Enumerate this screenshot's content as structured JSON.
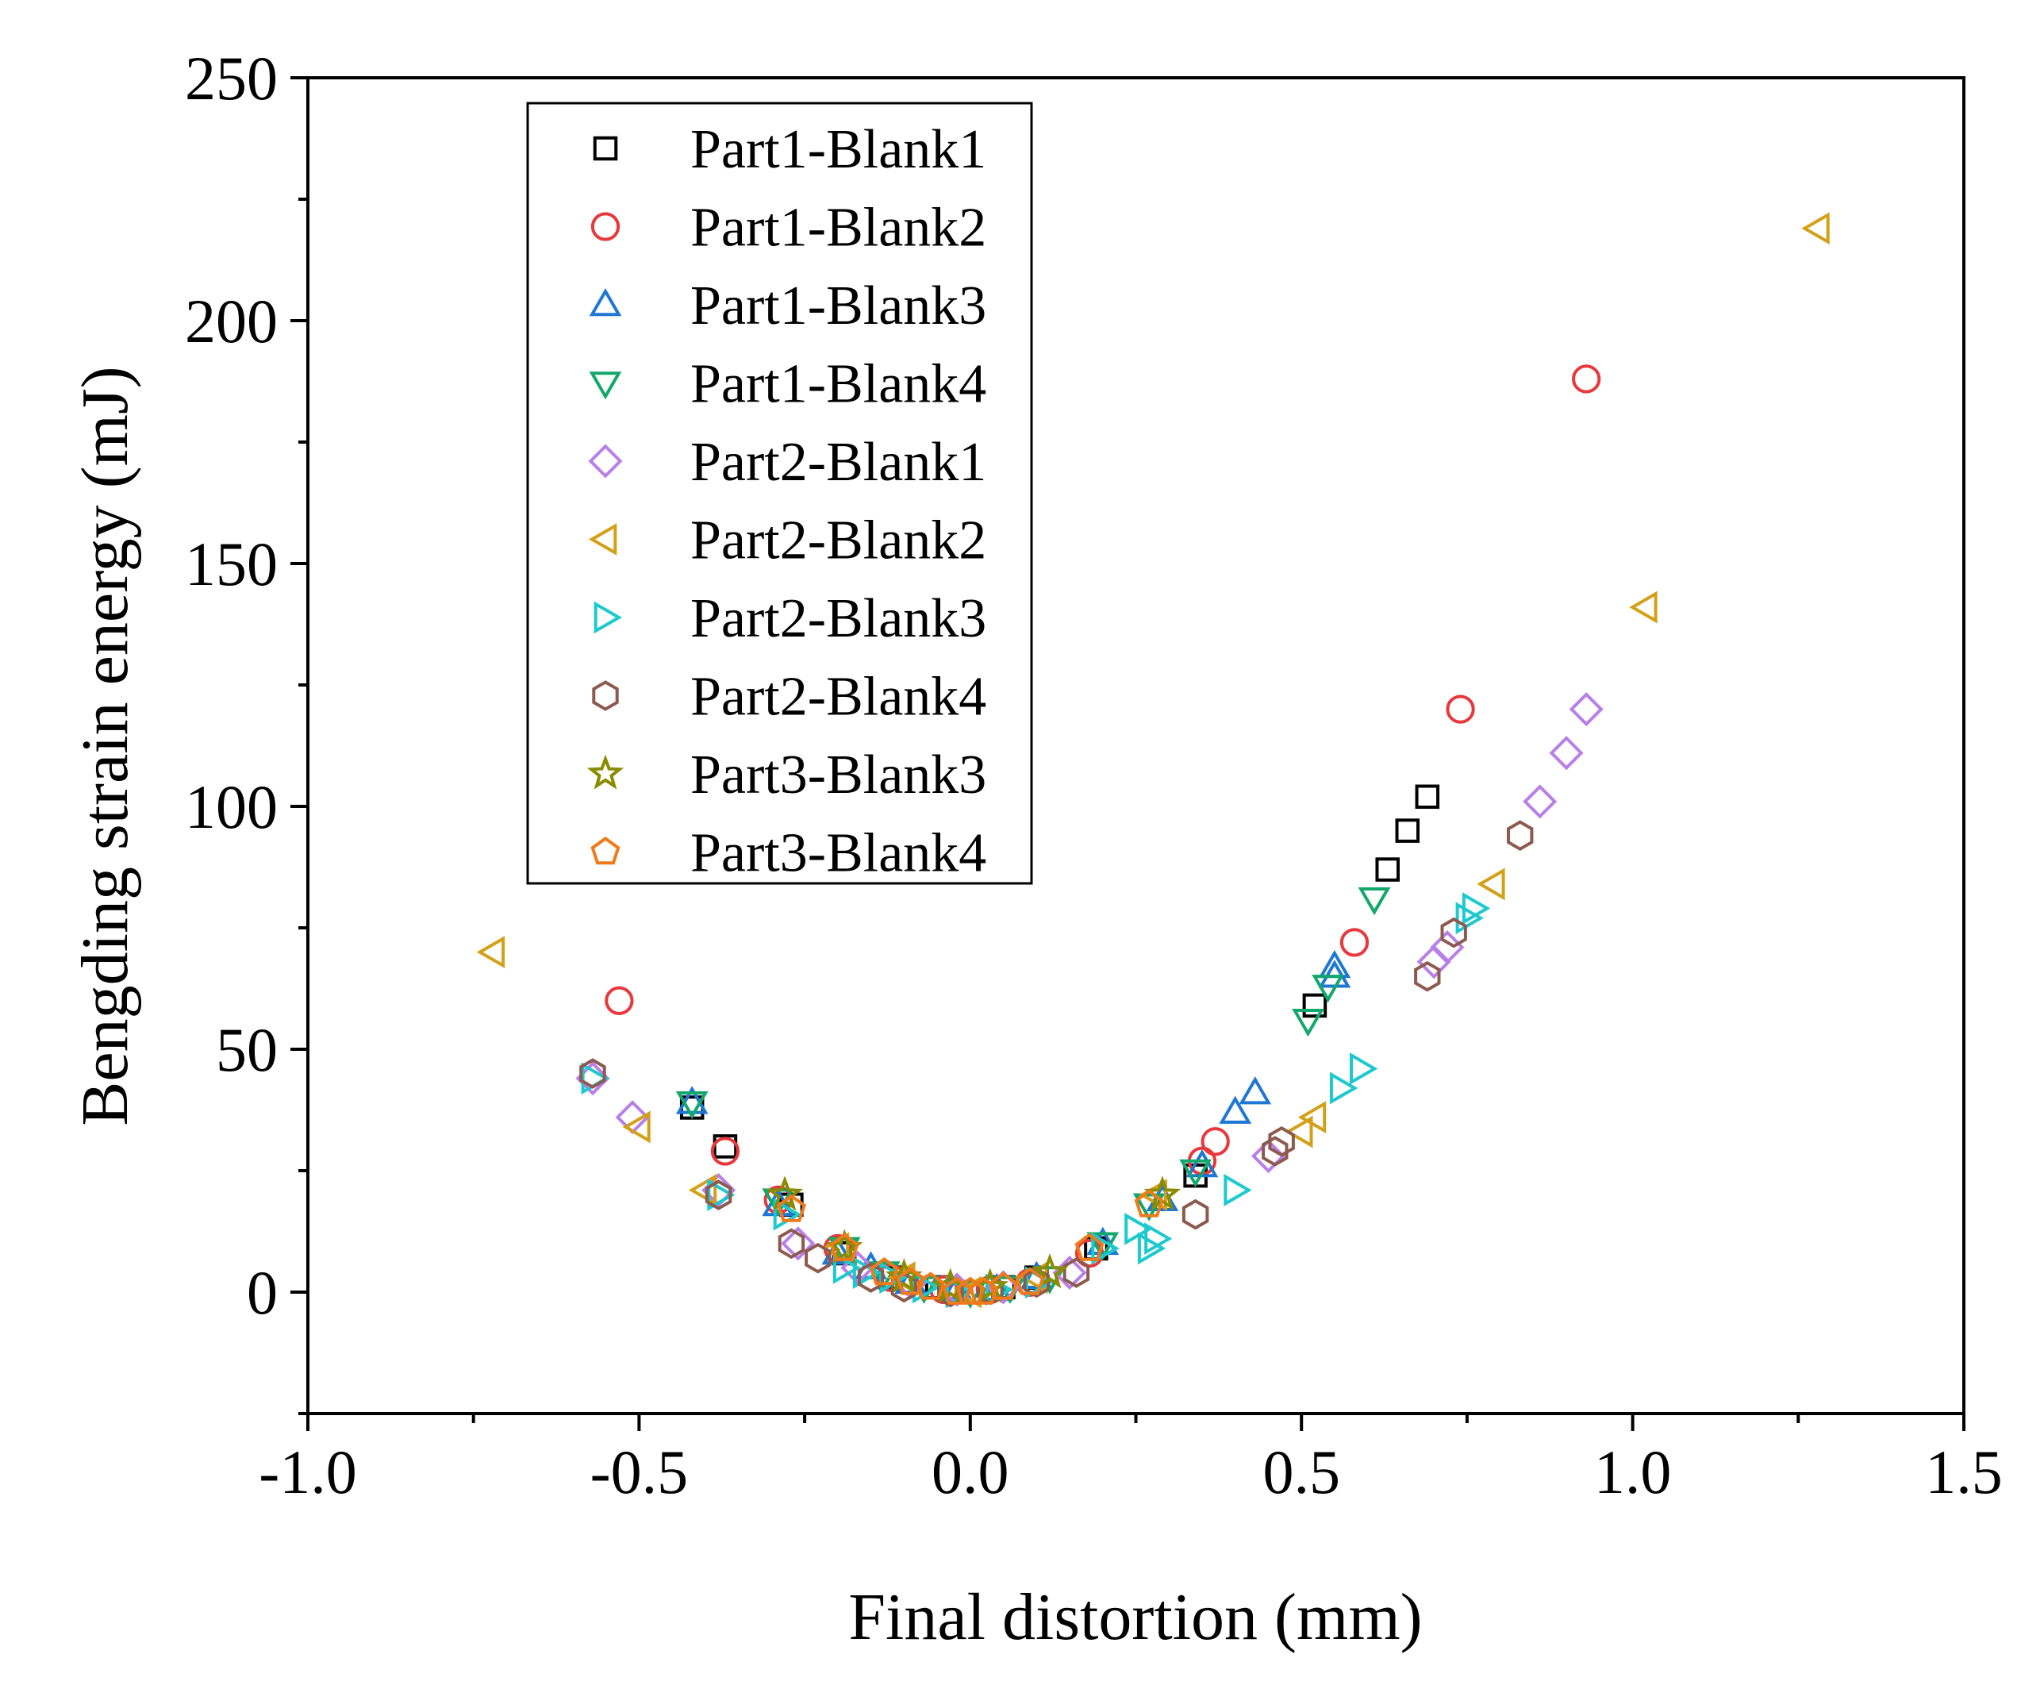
{
  "chart_data": {
    "type": "scatter",
    "title": "",
    "xlabel": "Final distortion (mm)",
    "ylabel": "Bengding strain energy (mJ)",
    "xlim": [
      -1.0,
      1.5
    ],
    "ylim": [
      -25,
      250
    ],
    "xticks": [
      -1.0,
      -0.5,
      0.0,
      0.5,
      1.0,
      1.5
    ],
    "xtick_labels": [
      "-1.0",
      "-0.5",
      "0.0",
      "0.5",
      "1.0",
      "1.5"
    ],
    "yticks": [
      0,
      50,
      100,
      150,
      200,
      250
    ],
    "ytick_labels": [
      "0",
      "50",
      "100",
      "150",
      "200",
      "250"
    ],
    "grid": false,
    "legend_position": "top-left",
    "series": [
      {
        "name": "Part1-Blank1",
        "marker": "square",
        "color": "#000000",
        "points": [
          [
            -0.42,
            38
          ],
          [
            -0.37,
            30
          ],
          [
            -0.27,
            18
          ],
          [
            -0.19,
            8
          ],
          [
            -0.12,
            3
          ],
          [
            -0.05,
            1
          ],
          [
            0.0,
            0
          ],
          [
            0.05,
            1
          ],
          [
            0.1,
            3
          ],
          [
            0.19,
            9
          ],
          [
            0.34,
            24
          ],
          [
            0.52,
            59
          ],
          [
            0.63,
            87
          ],
          [
            0.66,
            95
          ],
          [
            0.69,
            102
          ]
        ]
      },
      {
        "name": "Part1-Blank2",
        "marker": "circle",
        "color": "#e8383d",
        "points": [
          [
            -0.53,
            60
          ],
          [
            -0.37,
            29
          ],
          [
            -0.29,
            19
          ],
          [
            -0.2,
            9
          ],
          [
            -0.12,
            3
          ],
          [
            -0.04,
            0.5
          ],
          [
            0.03,
            0.5
          ],
          [
            0.09,
            2
          ],
          [
            0.18,
            8
          ],
          [
            0.35,
            27
          ],
          [
            0.37,
            31
          ],
          [
            0.58,
            72
          ],
          [
            0.74,
            120
          ],
          [
            0.93,
            188
          ]
        ]
      },
      {
        "name": "Part1-Blank3",
        "marker": "triangle-up",
        "color": "#1f77d4",
        "points": [
          [
            -0.42,
            39
          ],
          [
            -0.29,
            18
          ],
          [
            -0.2,
            8
          ],
          [
            -0.15,
            5
          ],
          [
            -0.09,
            2
          ],
          [
            -0.02,
            0.5
          ],
          [
            0.04,
            0.5
          ],
          [
            0.1,
            3
          ],
          [
            0.2,
            10
          ],
          [
            0.29,
            19
          ],
          [
            0.35,
            26
          ],
          [
            0.4,
            37
          ],
          [
            0.43,
            41
          ],
          [
            0.55,
            65
          ],
          [
            0.55,
            67
          ]
        ]
      },
      {
        "name": "Part1-Blank4",
        "marker": "triangle-down",
        "color": "#13a86b",
        "points": [
          [
            -0.42,
            39
          ],
          [
            -0.29,
            19
          ],
          [
            -0.19,
            9
          ],
          [
            -0.13,
            4
          ],
          [
            -0.07,
            1
          ],
          [
            0.0,
            0
          ],
          [
            0.06,
            1
          ],
          [
            0.12,
            3
          ],
          [
            0.2,
            10
          ],
          [
            0.27,
            18
          ],
          [
            0.34,
            25
          ],
          [
            0.51,
            56
          ],
          [
            0.54,
            63
          ],
          [
            0.61,
            81
          ]
        ]
      },
      {
        "name": "Part2-Blank1",
        "marker": "diamond",
        "color": "#b97fe8",
        "points": [
          [
            -0.57,
            44
          ],
          [
            -0.51,
            36
          ],
          [
            -0.38,
            21
          ],
          [
            -0.26,
            10
          ],
          [
            -0.17,
            5
          ],
          [
            -0.09,
            2
          ],
          [
            -0.02,
            0.5
          ],
          [
            0.05,
            1
          ],
          [
            0.15,
            4
          ],
          [
            0.45,
            28
          ],
          [
            0.7,
            68
          ],
          [
            0.72,
            71
          ],
          [
            0.86,
            101
          ],
          [
            0.9,
            111
          ],
          [
            0.93,
            120
          ]
        ]
      },
      {
        "name": "Part2-Blank2",
        "marker": "triangle-left",
        "color": "#d4a017",
        "points": [
          [
            -0.72,
            70
          ],
          [
            -0.5,
            34
          ],
          [
            -0.4,
            21
          ],
          [
            -0.2,
            9
          ],
          [
            -0.1,
            3
          ],
          [
            0.0,
            0
          ],
          [
            0.1,
            3
          ],
          [
            0.28,
            20
          ],
          [
            0.5,
            33
          ],
          [
            0.52,
            36
          ],
          [
            0.79,
            84
          ],
          [
            1.02,
            141
          ],
          [
            1.28,
            219
          ]
        ]
      },
      {
        "name": "Part2-Blank3",
        "marker": "triangle-right",
        "color": "#1cc9cf",
        "points": [
          [
            -0.57,
            44
          ],
          [
            -0.38,
            20
          ],
          [
            -0.28,
            16
          ],
          [
            -0.19,
            5
          ],
          [
            -0.16,
            4
          ],
          [
            -0.12,
            3
          ],
          [
            -0.07,
            1
          ],
          [
            -0.02,
            0
          ],
          [
            0.04,
            0.5
          ],
          [
            0.1,
            2
          ],
          [
            0.2,
            9
          ],
          [
            0.25,
            13
          ],
          [
            0.27,
            9
          ],
          [
            0.28,
            11
          ],
          [
            0.4,
            21
          ],
          [
            0.56,
            42
          ],
          [
            0.59,
            46
          ],
          [
            0.75,
            77
          ],
          [
            0.76,
            79
          ]
        ]
      },
      {
        "name": "Part2-Blank4",
        "marker": "hexagon",
        "color": "#8c5a4e",
        "points": [
          [
            -0.57,
            45
          ],
          [
            -0.38,
            20
          ],
          [
            -0.27,
            10
          ],
          [
            -0.23,
            7
          ],
          [
            -0.15,
            3
          ],
          [
            -0.1,
            1
          ],
          [
            -0.03,
            0
          ],
          [
            0.03,
            0.5
          ],
          [
            0.1,
            2
          ],
          [
            0.16,
            4
          ],
          [
            0.34,
            16
          ],
          [
            0.46,
            29
          ],
          [
            0.47,
            31
          ],
          [
            0.69,
            65
          ],
          [
            0.73,
            74
          ],
          [
            0.83,
            94
          ]
        ]
      },
      {
        "name": "Part3-Blank3",
        "marker": "star",
        "color": "#8b8b00",
        "points": [
          [
            -0.28,
            20
          ],
          [
            -0.19,
            9
          ],
          [
            -0.1,
            3
          ],
          [
            -0.03,
            1
          ],
          [
            0.03,
            1
          ],
          [
            0.12,
            4
          ],
          [
            0.29,
            20
          ]
        ]
      },
      {
        "name": "Part3-Blank4",
        "marker": "pentagon",
        "color": "#f07a1a",
        "points": [
          [
            -0.27,
            17
          ],
          [
            -0.19,
            9
          ],
          [
            -0.13,
            4
          ],
          [
            -0.09,
            2
          ],
          [
            -0.06,
            1
          ],
          [
            -0.02,
            0
          ],
          [
            0.0,
            0
          ],
          [
            0.02,
            0
          ],
          [
            0.05,
            1
          ],
          [
            0.09,
            2
          ],
          [
            0.18,
            9
          ],
          [
            0.27,
            18
          ]
        ]
      }
    ]
  }
}
